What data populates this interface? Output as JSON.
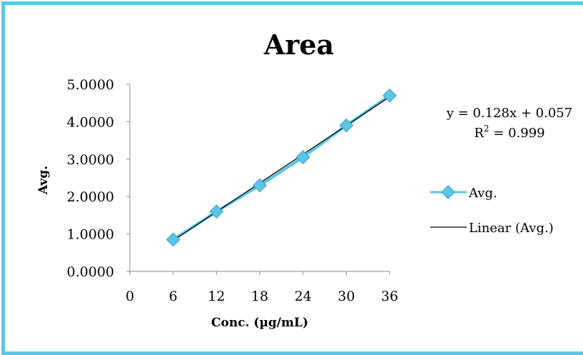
{
  "chart_data": {
    "type": "scatter",
    "title": "Area",
    "xlabel": "Conc. (µg/mL)",
    "ylabel": "Avg.",
    "xlim": [
      0,
      36
    ],
    "ylim": [
      0,
      5
    ],
    "xticks": [
      "0",
      "6",
      "12",
      "18",
      "24",
      "30",
      "36"
    ],
    "yticks": [
      "0.0000",
      "1.0000",
      "2.0000",
      "3.0000",
      "4.0000",
      "5.0000"
    ],
    "grid": false,
    "legend_position": "right",
    "series": [
      {
        "name": "Avg.",
        "color": "#5bc5e6",
        "marker": "diamond",
        "x": [
          6,
          12,
          18,
          24,
          30,
          36
        ],
        "y": [
          0.85,
          1.6,
          2.3,
          3.05,
          3.9,
          4.7
        ]
      },
      {
        "name": "Linear (Avg.)",
        "color": "#000000",
        "kind": "trendline",
        "slope": 0.128,
        "intercept": 0.057,
        "x_range": [
          6,
          36
        ]
      }
    ],
    "annotations": {
      "equation": "y = 0.128x + 0.057",
      "r2_prefix": "R",
      "r2_sup": "2",
      "r2_suffix": " = 0.999"
    }
  }
}
